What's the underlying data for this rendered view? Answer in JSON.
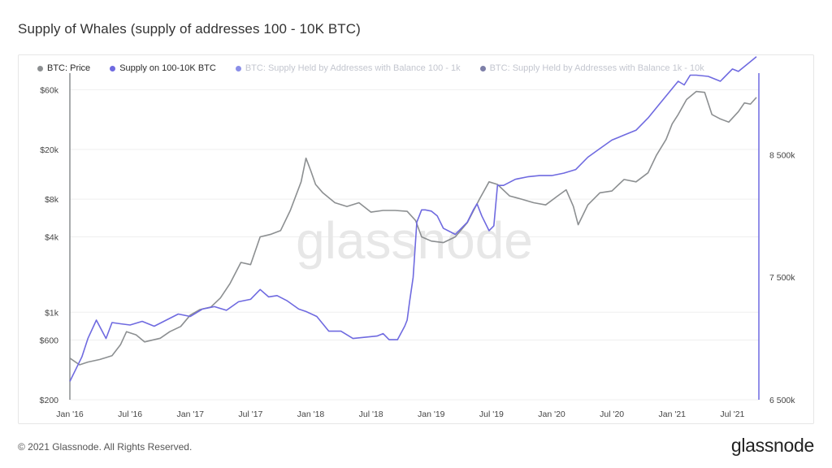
{
  "page": {
    "title": "Supply of Whales (supply of addresses 100 - 10K BTC)",
    "copyright": "© 2021 Glassnode. All Rights Reserved.",
    "logo": "glassnode"
  },
  "legend": [
    {
      "label": "BTC: Price",
      "color": "#8c8f91",
      "faded": false
    },
    {
      "label": "Supply on 100-10K BTC",
      "color": "#6f6ae0",
      "faded": false
    },
    {
      "label": "BTC: Supply Held by Addresses with Balance 100 - 1k",
      "color": "#8a8ee8",
      "faded": true
    },
    {
      "label": "BTC: Supply Held by Addresses with Balance 1k - 10k",
      "color": "#7d7fa8",
      "faded": true
    }
  ],
  "chart_data": {
    "type": "line",
    "watermark": "glassnode",
    "x_tick_labels": [
      "Jan '16",
      "Jul '16",
      "Jan '17",
      "Jul '17",
      "Jan '18",
      "Jul '18",
      "Jan '19",
      "Jul '19",
      "Jan '20",
      "Jul '20",
      "Jan '21",
      "Jul '21"
    ],
    "x_tick_years": [
      2016.0,
      2016.5,
      2017.0,
      2017.5,
      2018.0,
      2018.5,
      2019.0,
      2019.5,
      2020.0,
      2020.5,
      2021.0,
      2021.5
    ],
    "xlim": [
      2016.0,
      2021.72
    ],
    "y_left": {
      "scale": "log",
      "ticks": [
        200,
        600,
        1000,
        4000,
        8000,
        20000,
        60000
      ],
      "tick_labels": [
        "$200",
        "$600",
        "$1k",
        "$4k",
        "$8k",
        "$20k",
        "$60k"
      ],
      "ylim": [
        200,
        70000
      ]
    },
    "y_right": {
      "scale": "linear",
      "ticks": [
        6500000,
        7500000,
        8500000
      ],
      "tick_labels": [
        "6 500k",
        "7 500k",
        "8 500k"
      ],
      "ylim": [
        6500000,
        9100000
      ]
    },
    "series": [
      {
        "name": "BTC: Price",
        "axis": "left",
        "color": "#8c8f91",
        "x": [
          2016.0,
          2016.08,
          2016.15,
          2016.25,
          2016.35,
          2016.42,
          2016.47,
          2016.55,
          2016.62,
          2016.75,
          2016.83,
          2016.92,
          2017.0,
          2017.08,
          2017.17,
          2017.25,
          2017.33,
          2017.42,
          2017.5,
          2017.58,
          2017.67,
          2017.75,
          2017.83,
          2017.92,
          2017.96,
          2018.0,
          2018.04,
          2018.1,
          2018.2,
          2018.3,
          2018.4,
          2018.5,
          2018.6,
          2018.7,
          2018.8,
          2018.87,
          2018.92,
          2019.0,
          2019.1,
          2019.2,
          2019.3,
          2019.4,
          2019.48,
          2019.55,
          2019.65,
          2019.75,
          2019.85,
          2019.95,
          2020.05,
          2020.12,
          2020.18,
          2020.22,
          2020.3,
          2020.4,
          2020.5,
          2020.6,
          2020.7,
          2020.8,
          2020.87,
          2020.95,
          2021.0,
          2021.05,
          2021.12,
          2021.2,
          2021.27,
          2021.33,
          2021.4,
          2021.47,
          2021.55,
          2021.6,
          2021.65,
          2021.7
        ],
        "y": [
          430,
          380,
          400,
          420,
          450,
          550,
          700,
          660,
          580,
          620,
          700,
          770,
          950,
          1050,
          1100,
          1300,
          1700,
          2500,
          2400,
          4000,
          4200,
          4500,
          6500,
          11000,
          17000,
          13500,
          10500,
          9000,
          7500,
          7000,
          7500,
          6300,
          6500,
          6500,
          6400,
          5400,
          4000,
          3700,
          3600,
          4000,
          5200,
          8000,
          11000,
          10500,
          8500,
          8000,
          7500,
          7200,
          8500,
          9500,
          7000,
          5000,
          7200,
          9000,
          9300,
          11500,
          11000,
          13000,
          18000,
          24000,
          32000,
          38000,
          50000,
          58000,
          57000,
          38000,
          35000,
          33000,
          40000,
          47000,
          46000,
          52000
        ]
      },
      {
        "name": "Supply on 100-10K BTC",
        "axis": "right",
        "color": "#6f6ae0",
        "x": [
          2016.0,
          2016.05,
          2016.1,
          2016.15,
          2016.22,
          2016.3,
          2016.35,
          2016.42,
          2016.5,
          2016.6,
          2016.7,
          2016.8,
          2016.9,
          2017.0,
          2017.1,
          2017.2,
          2017.3,
          2017.4,
          2017.5,
          2017.58,
          2017.65,
          2017.72,
          2017.8,
          2017.9,
          2017.96,
          2018.05,
          2018.15,
          2018.25,
          2018.35,
          2018.45,
          2018.55,
          2018.6,
          2018.65,
          2018.72,
          2018.78,
          2018.8,
          2018.82,
          2018.85,
          2018.88,
          2018.92,
          2018.95,
          2019.0,
          2019.05,
          2019.1,
          2019.2,
          2019.3,
          2019.35,
          2019.38,
          2019.42,
          2019.48,
          2019.52,
          2019.55,
          2019.6,
          2019.7,
          2019.8,
          2019.9,
          2020.0,
          2020.1,
          2020.2,
          2020.3,
          2020.4,
          2020.5,
          2020.6,
          2020.7,
          2020.8,
          2020.9,
          2021.0,
          2021.05,
          2021.1,
          2021.15,
          2021.2,
          2021.3,
          2021.4,
          2021.5,
          2021.55,
          2021.6,
          2021.65,
          2021.7
        ],
        "y": [
          6650000,
          6750000,
          6850000,
          7000000,
          7150000,
          7000000,
          7130000,
          7120000,
          7110000,
          7140000,
          7100000,
          7150000,
          7200000,
          7180000,
          7240000,
          7260000,
          7230000,
          7300000,
          7320000,
          7400000,
          7340000,
          7350000,
          7310000,
          7240000,
          7220000,
          7180000,
          7060000,
          7060000,
          7000000,
          7010000,
          7020000,
          7040000,
          6990000,
          6990000,
          7100000,
          7150000,
          7300000,
          7500000,
          7950000,
          8050000,
          8050000,
          8040000,
          8000000,
          7900000,
          7850000,
          7950000,
          8050000,
          8100000,
          8000000,
          7880000,
          7920000,
          8250000,
          8250000,
          8300000,
          8320000,
          8330000,
          8330000,
          8350000,
          8380000,
          8480000,
          8550000,
          8620000,
          8660000,
          8700000,
          8800000,
          8920000,
          9040000,
          9100000,
          9070000,
          9150000,
          9150000,
          9140000,
          9100000,
          9200000,
          9180000,
          9220000,
          9260000,
          9300000
        ]
      }
    ]
  }
}
